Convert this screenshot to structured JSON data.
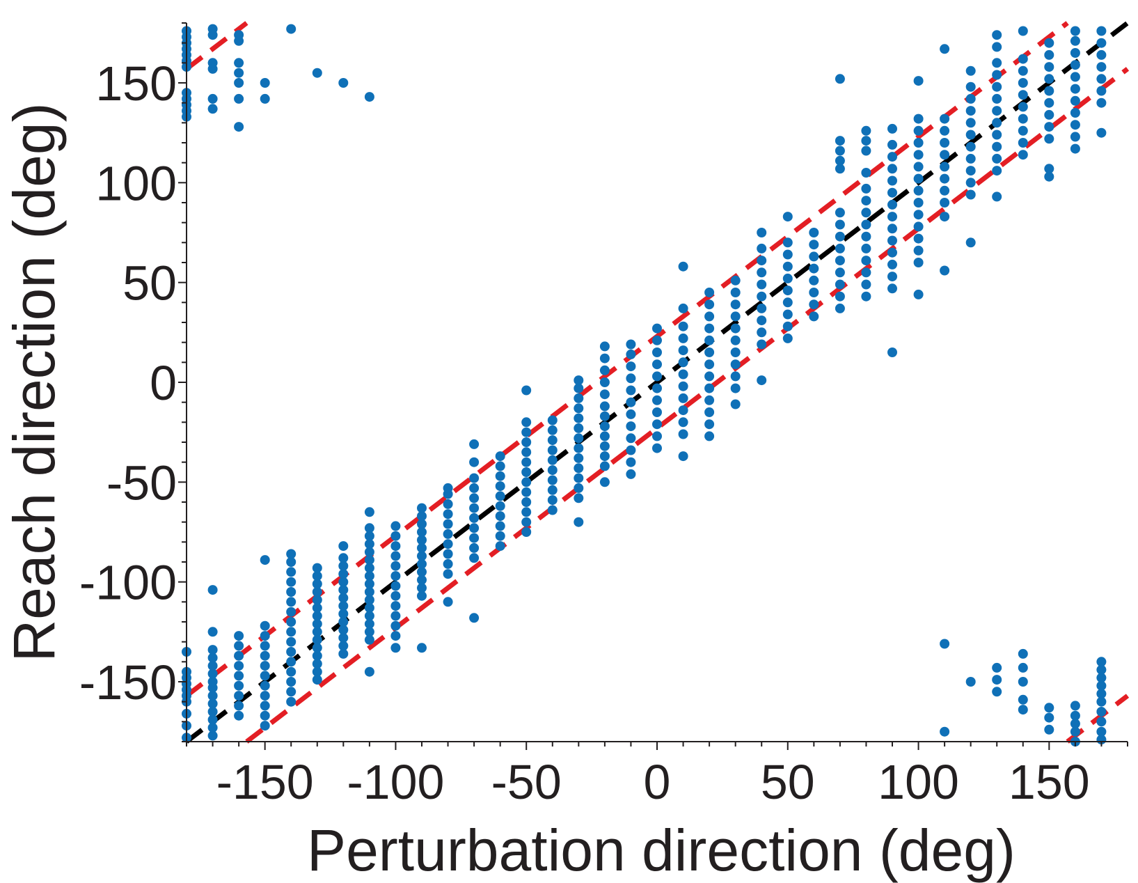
{
  "chart_data": {
    "type": "scatter",
    "title": "",
    "xlabel": "Perturbation direction (deg)",
    "ylabel": "Reach direction (deg)",
    "xlim": [
      -180,
      180
    ],
    "ylim": [
      -180,
      180
    ],
    "xticks": [
      -150,
      -100,
      -50,
      0,
      50,
      100,
      150
    ],
    "yticks": [
      -150,
      -100,
      -50,
      0,
      50,
      100,
      150
    ],
    "xtick_labels": [
      "-150",
      "-100",
      "-50",
      "0",
      "50",
      "100",
      "150"
    ],
    "ytick_labels": [
      "-150",
      "-100",
      "-50",
      "0",
      "50",
      "100",
      "150"
    ],
    "minor_tick_step": 10,
    "grid": false,
    "legend": null,
    "colors": {
      "points": "#0f70b7",
      "identity_line": "#000000",
      "bound_lines": "#e31e24",
      "axes": "#231f20"
    },
    "reference_lines": [
      {
        "role": "identity",
        "style": "dashed",
        "color": "#000000",
        "offset": 0
      },
      {
        "role": "upper-bound",
        "style": "dashed",
        "color": "#e31e24",
        "offset": 23
      },
      {
        "role": "lower-bound",
        "style": "dashed",
        "color": "#e31e24",
        "offset": -23
      }
    ],
    "columns": [
      {
        "x": -180,
        "y": [
          -178,
          -172,
          -166,
          -160,
          -157,
          -154,
          -151,
          -148,
          -145,
          -135,
          133,
          136,
          139,
          142,
          145,
          158,
          161,
          164,
          167,
          170,
          173,
          176
        ]
      },
      {
        "x": -170,
        "y": [
          -177,
          -173,
          -169,
          -165,
          -161,
          -157,
          -153,
          -150,
          -146,
          -142,
          -138,
          -134,
          -125,
          -104,
          137,
          142,
          157,
          160,
          174,
          177
        ]
      },
      {
        "x": -160,
        "y": [
          -167,
          -162,
          -157,
          -152,
          -147,
          -142,
          -137,
          -132,
          -127,
          128,
          142,
          150,
          155,
          160,
          171,
          174
        ]
      },
      {
        "x": -150,
        "y": [
          -172,
          -167,
          -162,
          -157,
          -152,
          -147,
          -142,
          -137,
          -132,
          -127,
          -122,
          -89,
          142,
          150
        ]
      },
      {
        "x": -140,
        "y": [
          -160,
          -155,
          -150,
          -145,
          -140,
          -135,
          -130,
          -125,
          -120,
          -115,
          -110,
          -105,
          -100,
          -95,
          -90,
          -86,
          177
        ]
      },
      {
        "x": -130,
        "y": [
          -149,
          -145,
          -141,
          -137,
          -133,
          -129,
          -125,
          -121,
          -117,
          -113,
          -109,
          -105,
          -101,
          -97,
          -93,
          155
        ]
      },
      {
        "x": -120,
        "y": [
          -136,
          -132,
          -128,
          -124,
          -120,
          -116,
          -112,
          -108,
          -104,
          -100,
          -96,
          -92,
          -88,
          -82,
          150
        ]
      },
      {
        "x": -110,
        "y": [
          -145,
          -129,
          -125,
          -121,
          -117,
          -113,
          -109,
          -105,
          -101,
          -97,
          -93,
          -89,
          -85,
          -81,
          -77,
          -73,
          -65,
          143
        ]
      },
      {
        "x": -100,
        "y": [
          -133,
          -127,
          -122,
          -117,
          -112,
          -107,
          -102,
          -97,
          -92,
          -87,
          -82,
          -77,
          -72
        ]
      },
      {
        "x": -90,
        "y": [
          -133,
          -107,
          -103,
          -99,
          -95,
          -91,
          -87,
          -83,
          -79,
          -75,
          -71,
          -67,
          -63
        ]
      },
      {
        "x": -80,
        "y": [
          -110,
          -96,
          -91,
          -86,
          -81,
          -76,
          -71,
          -66,
          -61,
          -56,
          -53
        ]
      },
      {
        "x": -70,
        "y": [
          -118,
          -88,
          -83,
          -78,
          -73,
          -68,
          -63,
          -58,
          -53,
          -48,
          -40,
          -31
        ]
      },
      {
        "x": -60,
        "y": [
          -82,
          -77,
          -72,
          -67,
          -62,
          -57,
          -52,
          -47,
          -42,
          -37
        ]
      },
      {
        "x": -50,
        "y": [
          -75,
          -70,
          -65,
          -60,
          -55,
          -50,
          -45,
          -40,
          -35,
          -30,
          -25,
          -20,
          -4
        ]
      },
      {
        "x": -40,
        "y": [
          -64,
          -59,
          -54,
          -49,
          -44,
          -39,
          -34,
          -29,
          -24,
          -19
        ]
      },
      {
        "x": -30,
        "y": [
          -70,
          -58,
          -53,
          -48,
          -43,
          -38,
          -33,
          -28,
          -23,
          -18,
          -13,
          -8,
          -3,
          1
        ]
      },
      {
        "x": -20,
        "y": [
          -50,
          -42,
          -37,
          -32,
          -27,
          -22,
          -17,
          -12,
          -6,
          0,
          6,
          12,
          18
        ]
      },
      {
        "x": -10,
        "y": [
          -46,
          -40,
          -34,
          -28,
          -22,
          -16,
          -10,
          -4,
          2,
          8,
          14,
          19
        ]
      },
      {
        "x": 0,
        "y": [
          -33,
          -27,
          -21,
          -15,
          -9,
          -3,
          3,
          9,
          15,
          21,
          27
        ]
      },
      {
        "x": 10,
        "y": [
          -37,
          -26,
          -20,
          -14,
          -8,
          -2,
          4,
          10,
          16,
          22,
          28,
          37,
          58
        ]
      },
      {
        "x": 20,
        "y": [
          -27,
          -21,
          -15,
          -9,
          -3,
          3,
          9,
          15,
          21,
          27,
          33,
          39,
          45
        ]
      },
      {
        "x": 30,
        "y": [
          -11,
          -3,
          3,
          9,
          15,
          21,
          27,
          33,
          39,
          45,
          51
        ]
      },
      {
        "x": 40,
        "y": [
          1,
          19,
          25,
          31,
          37,
          43,
          49,
          55,
          61,
          67,
          75
        ]
      },
      {
        "x": 50,
        "y": [
          22,
          28,
          34,
          40,
          46,
          52,
          58,
          64,
          70,
          83
        ]
      },
      {
        "x": 60,
        "y": [
          33,
          39,
          45,
          51,
          57,
          63,
          69,
          75
        ]
      },
      {
        "x": 70,
        "y": [
          37,
          43,
          49,
          55,
          61,
          67,
          73,
          79,
          85,
          107,
          111,
          116,
          121,
          152
        ]
      },
      {
        "x": 80,
        "y": [
          43,
          49,
          55,
          61,
          67,
          73,
          79,
          85,
          91,
          97,
          105,
          116,
          121,
          126
        ]
      },
      {
        "x": 90,
        "y": [
          15,
          47,
          53,
          59,
          65,
          71,
          77,
          83,
          89,
          95,
          101,
          107,
          113,
          119,
          127
        ]
      },
      {
        "x": 100,
        "y": [
          44,
          60,
          66,
          72,
          78,
          84,
          90,
          96,
          102,
          108,
          114,
          120,
          126,
          132,
          151
        ]
      },
      {
        "x": 110,
        "y": [
          56,
          83,
          90,
          96,
          102,
          108,
          114,
          120,
          126,
          132,
          167
        ]
      },
      {
        "x": 120,
        "y": [
          70,
          94,
          100,
          106,
          112,
          118,
          124,
          130,
          136,
          142,
          148,
          156
        ]
      },
      {
        "x": 130,
        "y": [
          93,
          106,
          112,
          118,
          124,
          130,
          136,
          142,
          148,
          154,
          160,
          168,
          174
        ]
      },
      {
        "x": 140,
        "y": [
          114,
          120,
          126,
          132,
          138,
          144,
          150,
          156,
          162,
          176
        ]
      },
      {
        "x": 150,
        "y": [
          103,
          107,
          122,
          128,
          134,
          140,
          146,
          152,
          158,
          164,
          170
        ]
      },
      {
        "x": 160,
        "y": [
          117,
          123,
          129,
          135,
          141,
          147,
          153,
          159,
          165,
          171,
          176
        ]
      },
      {
        "x": 170,
        "y": [
          125,
          140,
          146,
          152,
          158,
          164,
          170,
          176
        ]
      },
      {
        "x": 110,
        "y": [
          -175,
          -131
        ]
      },
      {
        "x": 120,
        "y": [
          -150
        ]
      },
      {
        "x": 130,
        "y": [
          -155,
          -149,
          -143
        ]
      },
      {
        "x": 140,
        "y": [
          -164,
          -159,
          -150,
          -143,
          -136
        ]
      },
      {
        "x": 150,
        "y": [
          -174,
          -168,
          -163
        ]
      },
      {
        "x": 160,
        "y": [
          -180,
          -175,
          -171,
          -167,
          -162
        ]
      },
      {
        "x": 170,
        "y": [
          -179,
          -175,
          -170,
          -165,
          -160,
          -156,
          -152,
          -148,
          -144,
          -140
        ]
      }
    ]
  }
}
